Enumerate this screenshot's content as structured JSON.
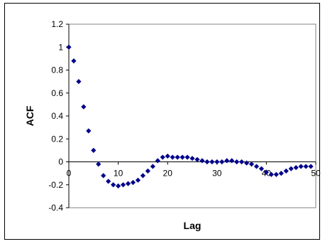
{
  "chart_data": {
    "type": "scatter",
    "title": "",
    "xlabel": "Lag",
    "ylabel": "ACF",
    "xlim": [
      0,
      50
    ],
    "ylim": [
      -0.4,
      1.2
    ],
    "xticks": [
      0,
      10,
      20,
      30,
      40,
      50
    ],
    "yticks": [
      -0.4,
      -0.2,
      0,
      0.2,
      0.4,
      0.6,
      0.8,
      1,
      1.2
    ],
    "xtick_labels": [
      "0",
      "10",
      "20",
      "30",
      "40",
      "50"
    ],
    "ytick_labels": [
      "-0.4",
      "-0.2",
      "0",
      "0.2",
      "0.4",
      "0.6",
      "0.8",
      "1",
      "1.2"
    ],
    "grid": false,
    "legend": "none",
    "marker_color": "#00008B",
    "series": [
      {
        "x": [
          0,
          1,
          2,
          3,
          4,
          5,
          6,
          7,
          8,
          9,
          10,
          11,
          12,
          13,
          14,
          15,
          16,
          17,
          18,
          19,
          20,
          21,
          22,
          23,
          24,
          25,
          26,
          27,
          28,
          29,
          30,
          31,
          32,
          33,
          34,
          35,
          36,
          37,
          38,
          39,
          40,
          41,
          42,
          43,
          44,
          45,
          46,
          47,
          48,
          49
        ],
        "values": [
          1.0,
          0.88,
          0.7,
          0.48,
          0.27,
          0.1,
          -0.02,
          -0.12,
          -0.17,
          -0.2,
          -0.21,
          -0.2,
          -0.19,
          -0.18,
          -0.16,
          -0.12,
          -0.08,
          -0.04,
          0.01,
          0.04,
          0.05,
          0.04,
          0.04,
          0.04,
          0.04,
          0.03,
          0.02,
          0.01,
          0.0,
          0.0,
          0.0,
          0.0,
          0.01,
          0.01,
          0.0,
          0.0,
          -0.01,
          -0.02,
          -0.04,
          -0.06,
          -0.09,
          -0.11,
          -0.11,
          -0.1,
          -0.08,
          -0.06,
          -0.05,
          -0.04,
          -0.04,
          -0.04
        ]
      }
    ]
  }
}
